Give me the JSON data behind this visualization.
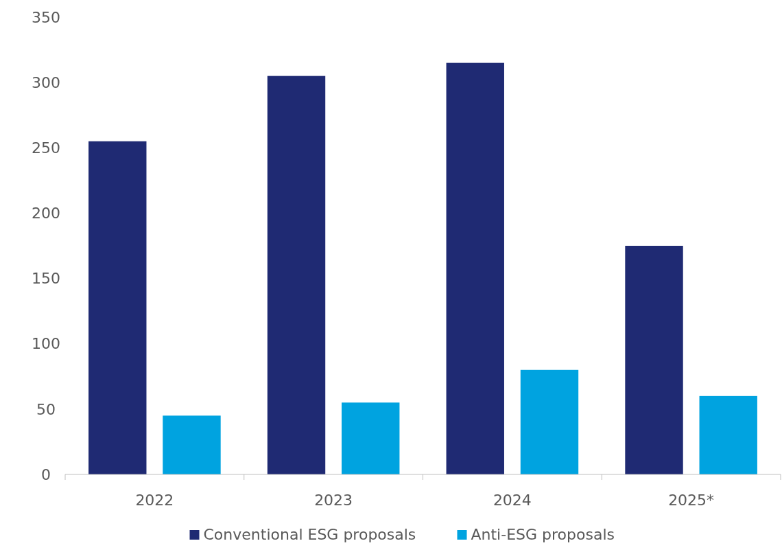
{
  "chart_data": {
    "type": "bar",
    "categories": [
      "2022",
      "2023",
      "2024",
      "2025*"
    ],
    "series": [
      {
        "name": "Conventional ESG proposals",
        "color": "#1f2a73",
        "values": [
          255,
          305,
          315,
          175
        ]
      },
      {
        "name": "Anti-ESG proposals",
        "color": "#00a3e0",
        "values": [
          45,
          55,
          80,
          60
        ]
      }
    ],
    "ylim": [
      0,
      350
    ],
    "yticks": [
      0,
      50,
      100,
      150,
      200,
      250,
      300,
      350
    ],
    "grid": false,
    "legend": "bottom"
  }
}
